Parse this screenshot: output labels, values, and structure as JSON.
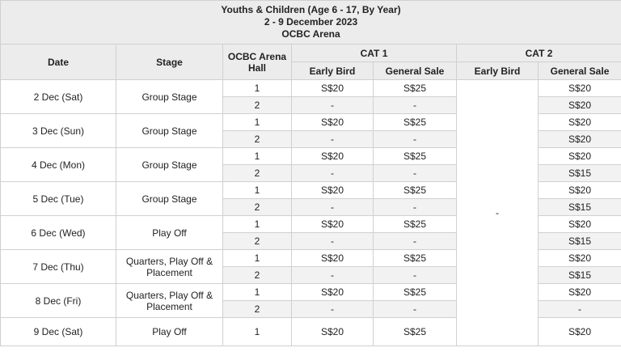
{
  "title": {
    "line1": "Youths & Children (Age 6 - 17, By Year)",
    "line2": "2 - 9 December 2023",
    "line3": "OCBC Arena"
  },
  "headers": {
    "date": "Date",
    "stage": "Stage",
    "hall": "OCBC Arena Hall",
    "cat1": "CAT 1",
    "cat2": "CAT 2",
    "early_bird": "Early Bird",
    "general_sale": "General Sale"
  },
  "cat2_early_bird_all": "-",
  "rows": [
    {
      "date": "2 Dec (Sat)",
      "stage": "Group Stage",
      "h1": {
        "hall": "1",
        "c1eb": "S$20",
        "c1gs": "S$25",
        "c2gs": "S$20"
      },
      "h2": {
        "hall": "2",
        "c1eb": "-",
        "c1gs": "-",
        "c2gs": "S$20"
      }
    },
    {
      "date": "3 Dec (Sun)",
      "stage": "Group Stage",
      "h1": {
        "hall": "1",
        "c1eb": "S$20",
        "c1gs": "S$25",
        "c2gs": "S$20"
      },
      "h2": {
        "hall": "2",
        "c1eb": "-",
        "c1gs": "-",
        "c2gs": "S$20"
      }
    },
    {
      "date": "4 Dec (Mon)",
      "stage": "Group Stage",
      "h1": {
        "hall": "1",
        "c1eb": "S$20",
        "c1gs": "S$25",
        "c2gs": "S$20"
      },
      "h2": {
        "hall": "2",
        "c1eb": "-",
        "c1gs": "-",
        "c2gs": "S$15"
      }
    },
    {
      "date": "5 Dec (Tue)",
      "stage": "Group Stage",
      "h1": {
        "hall": "1",
        "c1eb": "S$20",
        "c1gs": "S$25",
        "c2gs": "S$20"
      },
      "h2": {
        "hall": "2",
        "c1eb": "-",
        "c1gs": "-",
        "c2gs": "S$15"
      }
    },
    {
      "date": "6 Dec (Wed)",
      "stage": "Play Off",
      "h1": {
        "hall": "1",
        "c1eb": "S$20",
        "c1gs": "S$25",
        "c2gs": "S$20"
      },
      "h2": {
        "hall": "2",
        "c1eb": "-",
        "c1gs": "-",
        "c2gs": "S$15"
      }
    },
    {
      "date": "7 Dec (Thu)",
      "stage": "Quarters, Play Off & Placement",
      "h1": {
        "hall": "1",
        "c1eb": "S$20",
        "c1gs": "S$25",
        "c2gs": "S$20"
      },
      "h2": {
        "hall": "2",
        "c1eb": "-",
        "c1gs": "-",
        "c2gs": "S$15"
      }
    },
    {
      "date": "8 Dec (Fri)",
      "stage": "Quarters, Play Off & Placement",
      "h1": {
        "hall": "1",
        "c1eb": "S$20",
        "c1gs": "S$25",
        "c2gs": "S$20"
      },
      "h2": {
        "hall": "2",
        "c1eb": "-",
        "c1gs": "-",
        "c2gs": "-"
      }
    }
  ],
  "last_row": {
    "date": "9 Dec (Sat)",
    "stage": "Play Off",
    "hall": "1",
    "c1eb": "S$20",
    "c1gs": "S$25",
    "c2gs": "S$20"
  }
}
